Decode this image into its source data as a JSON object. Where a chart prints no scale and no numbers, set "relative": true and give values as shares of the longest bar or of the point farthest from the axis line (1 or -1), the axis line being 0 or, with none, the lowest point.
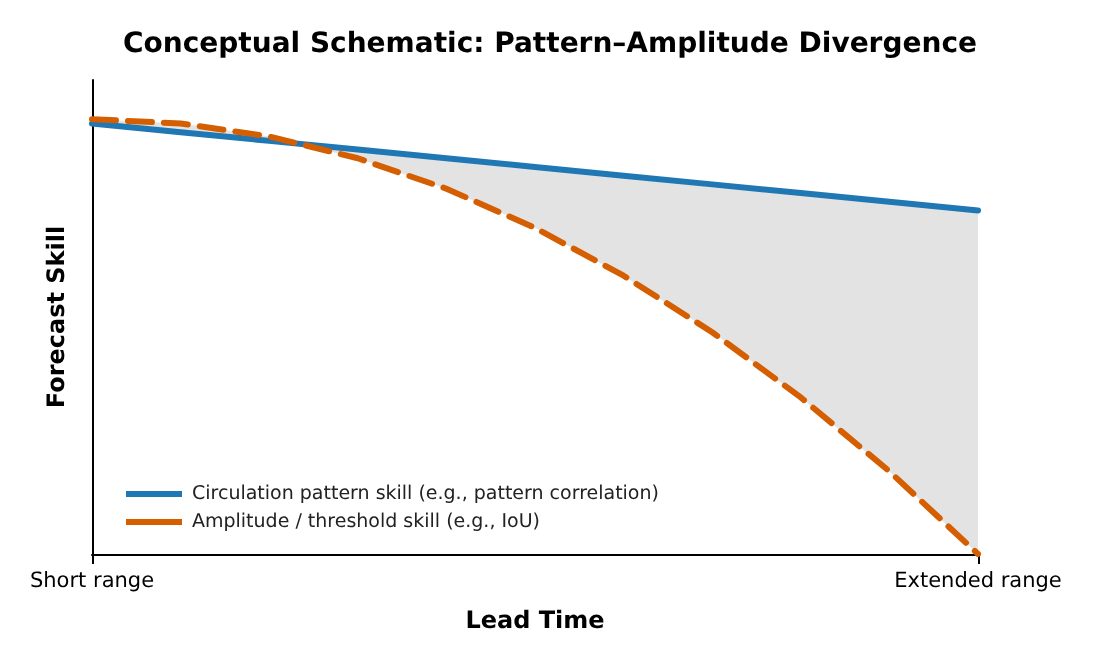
{
  "chart_data": {
    "type": "line",
    "title": "Conceptual Schematic: Pattern–Amplitude Divergence",
    "xlabel": "Lead Time",
    "ylabel": "Forecast Skill",
    "relative": true,
    "categories": [
      "Short range",
      null,
      null,
      null,
      null,
      null,
      null,
      null,
      null,
      null,
      "Extended range"
    ],
    "series": [
      {
        "name": "Circulation pattern skill (e.g., pattern correlation)",
        "color": "#1f77b4",
        "line_style": "solid",
        "values": [
          0.99,
          0.97,
          0.95,
          0.93,
          0.91,
          0.89,
          0.87,
          0.85,
          0.83,
          0.81,
          0.79
        ]
      },
      {
        "name": "Amplitude / threshold skill (e.g., IoU)",
        "color": "#d55e00",
        "line_style": "dashed",
        "values": [
          1,
          0.99,
          0.96,
          0.91,
          0.84,
          0.75,
          0.64,
          0.51,
          0.36,
          0.19,
          0
        ],
        "upper": [
          0.99,
          0.97,
          0.95,
          0.93,
          0.91,
          0.89,
          0.87,
          0.85,
          0.83,
          0.81,
          0.79
        ],
        "lower": [
          1,
          0.99,
          0.96,
          0.91,
          0.84,
          0.75,
          0.64,
          0.51,
          0.36,
          0.19,
          0
        ]
      }
    ],
    "grid": false,
    "legend": "bottom left",
    "marker": "none"
  }
}
